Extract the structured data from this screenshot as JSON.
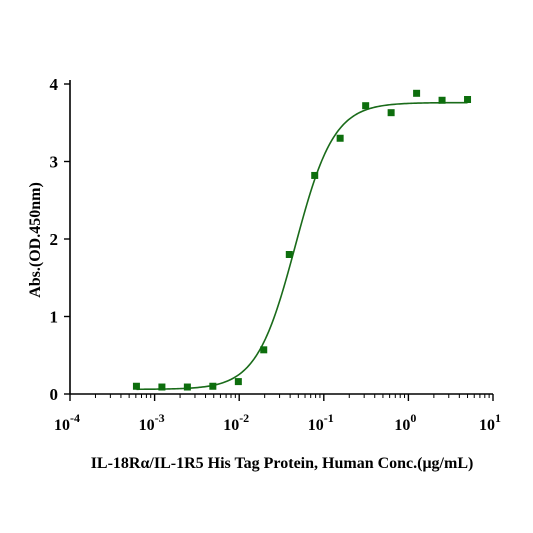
{
  "chart_data": {
    "type": "scatter",
    "xlabel": "IL-18Rα/IL-1R5 His Tag Protein, Human Conc.(μg/mL)",
    "ylabel": "Abs.(OD.450nm)",
    "x_scale": "log10",
    "xlim": [
      0.0001,
      10
    ],
    "ylim": [
      0,
      4
    ],
    "x_tick_labels": [
      {
        "base": "10",
        "exp": "-4"
      },
      {
        "base": "10",
        "exp": "-3"
      },
      {
        "base": "10",
        "exp": "-2"
      },
      {
        "base": "10",
        "exp": "-1"
      },
      {
        "base": "10",
        "exp": "0"
      },
      {
        "base": "10",
        "exp": "1"
      }
    ],
    "y_ticks": [
      "0",
      "1",
      "2",
      "3",
      "4"
    ],
    "grid": false,
    "series": [
      {
        "color": "#0d6e0d",
        "points": [
          {
            "x": 0.00061,
            "y": 0.1
          },
          {
            "x": 0.00122,
            "y": 0.09
          },
          {
            "x": 0.00244,
            "y": 0.09
          },
          {
            "x": 0.00488,
            "y": 0.1
          },
          {
            "x": 0.00977,
            "y": 0.16
          },
          {
            "x": 0.0195,
            "y": 0.57
          },
          {
            "x": 0.0391,
            "y": 1.8
          },
          {
            "x": 0.0781,
            "y": 2.82
          },
          {
            "x": 0.156,
            "y": 3.3
          },
          {
            "x": 0.3125,
            "y": 3.72
          },
          {
            "x": 0.625,
            "y": 3.63
          },
          {
            "x": 1.25,
            "y": 3.88
          },
          {
            "x": 2.5,
            "y": 3.79
          },
          {
            "x": 5.0,
            "y": 3.8
          }
        ],
        "fit": {
          "model": "4PL",
          "bottom": 0.06,
          "top": 3.76,
          "ec50": 0.046,
          "hill": 1.9
        }
      }
    ]
  }
}
